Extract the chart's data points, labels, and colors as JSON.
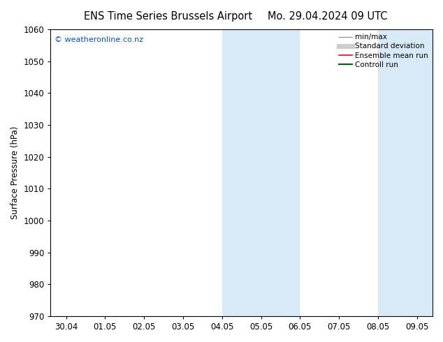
{
  "title_left": "ENS Time Series Brussels Airport",
  "title_right": "Mo. 29.04.2024 09 UTC",
  "ylabel": "Surface Pressure (hPa)",
  "ylim": [
    970,
    1060
  ],
  "yticks": [
    970,
    980,
    990,
    1000,
    1010,
    1020,
    1030,
    1040,
    1050,
    1060
  ],
  "xtick_labels": [
    "30.04",
    "01.05",
    "02.05",
    "03.05",
    "04.05",
    "05.05",
    "06.05",
    "07.05",
    "08.05",
    "09.05"
  ],
  "xtick_positions": [
    0,
    1,
    2,
    3,
    4,
    5,
    6,
    7,
    8,
    9
  ],
  "xlim": [
    -0.4,
    9.4
  ],
  "watermark": "© weatheronline.co.nz",
  "watermark_color": "#0055cc",
  "bg_color": "#ffffff",
  "plot_bg_color": "#ffffff",
  "shaded_regions": [
    {
      "xstart": 4.0,
      "xend": 6.0,
      "color": "#d8eaf8"
    },
    {
      "xstart": 8.0,
      "xend": 9.4,
      "color": "#d8eaf8"
    }
  ],
  "legend_entries": [
    {
      "label": "min/max",
      "color": "#999999",
      "lw": 1.0,
      "linestyle": "-"
    },
    {
      "label": "Standard deviation",
      "color": "#cccccc",
      "lw": 5,
      "linestyle": "-"
    },
    {
      "label": "Ensemble mean run",
      "color": "#ff0000",
      "lw": 1.2,
      "linestyle": "-"
    },
    {
      "label": "Controll run",
      "color": "#006600",
      "lw": 1.5,
      "linestyle": "-"
    }
  ],
  "spine_color": "#000000",
  "tick_color": "#000000",
  "font_size": 8.5,
  "title_font_size": 10.5
}
